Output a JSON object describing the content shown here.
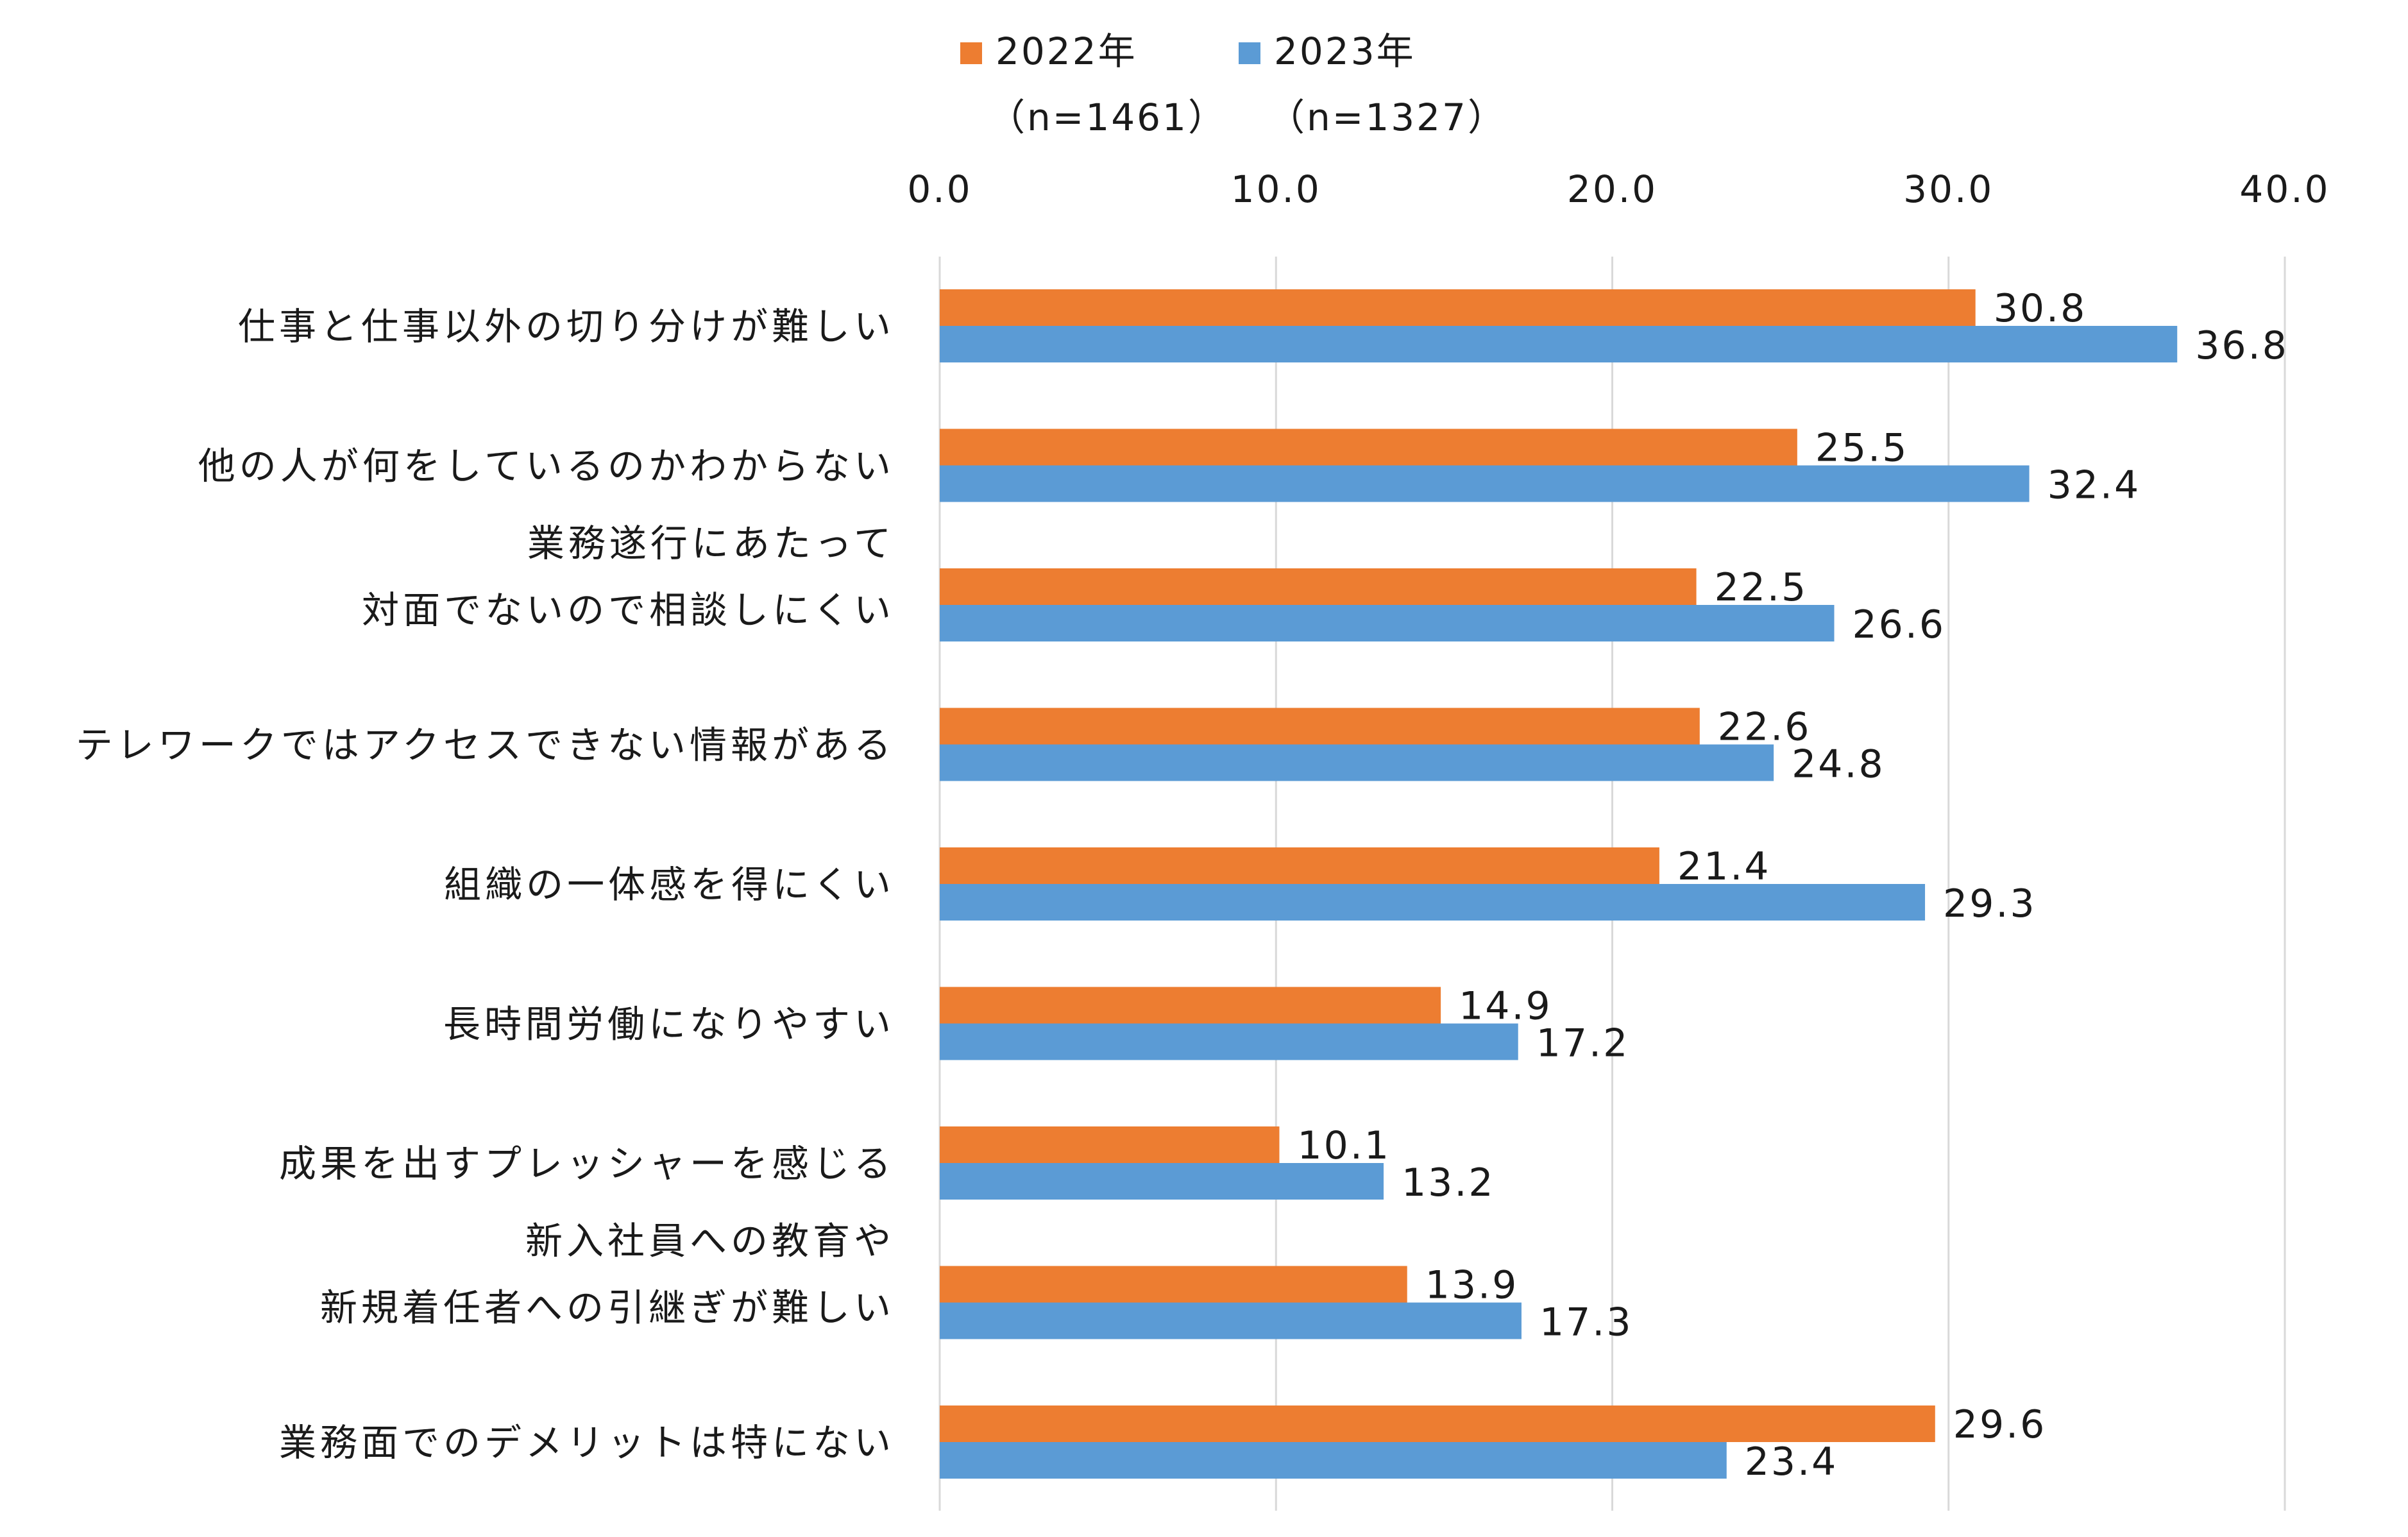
{
  "colors": {
    "series_2022": "#ED7D31",
    "series_2023": "#5B9BD5",
    "grid": "#D9D9D9",
    "text": "#1A1A1A"
  },
  "chart_data": {
    "type": "bar",
    "orientation": "horizontal",
    "title": "",
    "xlabel": "",
    "ylabel": "",
    "xlim": [
      0,
      40
    ],
    "ticks": [
      "0.0",
      "10.0",
      "20.0",
      "30.0",
      "40.0"
    ],
    "grid": true,
    "legend_position": "top",
    "categories": [
      [
        "仕事と仕事以外の切り分けが難しい"
      ],
      [
        "他の人が何をしているのかわからない"
      ],
      [
        "業務遂行にあたって",
        "対面でないので相談しにくい"
      ],
      [
        "テレワークではアクセスできない情報がある"
      ],
      [
        "組織の一体感を得にくい"
      ],
      [
        "長時間労働になりやすい"
      ],
      [
        "成果を出すプレッシャーを感じる"
      ],
      [
        "新入社員への教育や",
        "新規着任者への引継ぎが難しい"
      ],
      [
        "業務面でのデメリットは特にない"
      ]
    ],
    "series": [
      {
        "name": "2022年",
        "sample": "（n=1461）",
        "color": "#ED7D31",
        "values": [
          30.8,
          25.5,
          22.5,
          22.6,
          21.4,
          14.9,
          10.1,
          13.9,
          29.6
        ]
      },
      {
        "name": "2023年",
        "sample": "（n=1327）",
        "color": "#5B9BD5",
        "values": [
          36.8,
          32.4,
          26.6,
          24.8,
          29.3,
          17.2,
          13.2,
          17.3,
          23.4
        ]
      }
    ]
  }
}
